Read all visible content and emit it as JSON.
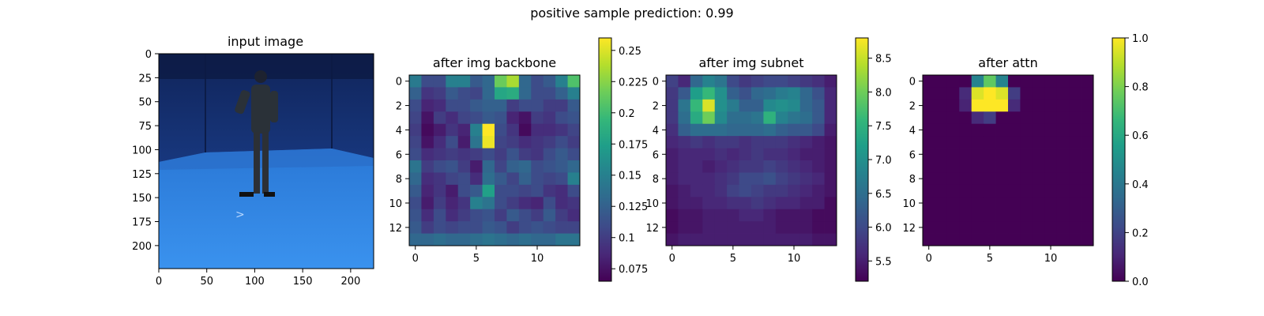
{
  "figure": {
    "suptitle": "positive sample      prediction: 0.99"
  },
  "colormap": [
    "#440154",
    "#482878",
    "#3e4a89",
    "#31688e",
    "#26828e",
    "#1f9e89",
    "#35b779",
    "#6dcd59",
    "#b4de2c",
    "#fde725"
  ],
  "chart_data": [
    {
      "type": "image",
      "title": "input image",
      "xlim": [
        0,
        224
      ],
      "ylim": [
        224,
        0
      ],
      "xticks": [
        0,
        50,
        100,
        150,
        200
      ],
      "yticks": [
        0,
        25,
        50,
        75,
        100,
        125,
        150,
        175,
        200
      ],
      "image": {
        "description_free": true,
        "wall_color": "#1f3f8f",
        "floor_color": "#2f86e6"
      }
    },
    {
      "type": "heatmap",
      "title": "after img backbone",
      "xticks": [
        0,
        5,
        10
      ],
      "yticks": [
        0,
        2,
        4,
        6,
        8,
        10,
        12
      ],
      "colorbar_ticks": [
        0.075,
        0.1,
        0.125,
        0.15,
        0.175,
        0.2,
        0.225,
        0.25
      ],
      "vmin": 0.065,
      "vmax": 0.26,
      "values": [
        [
          0.145,
          0.11,
          0.11,
          0.15,
          0.15,
          0.12,
          0.13,
          0.215,
          0.235,
          0.13,
          0.11,
          0.12,
          0.15,
          0.205
        ],
        [
          0.125,
          0.095,
          0.1,
          0.12,
          0.11,
          0.105,
          0.13,
          0.18,
          0.185,
          0.13,
          0.11,
          0.11,
          0.125,
          0.15
        ],
        [
          0.11,
          0.085,
          0.09,
          0.11,
          0.11,
          0.12,
          0.125,
          0.125,
          0.1,
          0.11,
          0.11,
          0.1,
          0.1,
          0.12
        ],
        [
          0.105,
          0.075,
          0.1,
          0.09,
          0.105,
          0.11,
          0.12,
          0.115,
          0.085,
          0.075,
          0.1,
          0.095,
          0.11,
          0.115
        ],
        [
          0.1,
          0.07,
          0.08,
          0.095,
          0.085,
          0.15,
          0.26,
          0.11,
          0.095,
          0.07,
          0.09,
          0.09,
          0.095,
          0.105
        ],
        [
          0.105,
          0.075,
          0.09,
          0.11,
          0.08,
          0.14,
          0.255,
          0.105,
          0.1,
          0.09,
          0.095,
          0.1,
          0.11,
          0.1
        ],
        [
          0.11,
          0.09,
          0.095,
          0.1,
          0.095,
          0.1,
          0.11,
          0.1,
          0.115,
          0.1,
          0.095,
          0.11,
          0.12,
          0.11
        ],
        [
          0.14,
          0.1,
          0.11,
          0.115,
          0.1,
          0.08,
          0.13,
          0.105,
          0.125,
          0.13,
          0.11,
          0.115,
          0.12,
          0.13
        ],
        [
          0.13,
          0.09,
          0.095,
          0.105,
          0.11,
          0.09,
          0.135,
          0.12,
          0.105,
          0.125,
          0.11,
          0.105,
          0.11,
          0.15
        ],
        [
          0.12,
          0.085,
          0.095,
          0.08,
          0.11,
          0.12,
          0.175,
          0.11,
          0.11,
          0.105,
          0.11,
          0.095,
          0.09,
          0.11
        ],
        [
          0.11,
          0.08,
          0.1,
          0.085,
          0.095,
          0.15,
          0.14,
          0.11,
          0.1,
          0.09,
          0.085,
          0.11,
          0.09,
          0.095
        ],
        [
          0.115,
          0.09,
          0.11,
          0.09,
          0.1,
          0.11,
          0.115,
          0.1,
          0.12,
          0.11,
          0.1,
          0.12,
          0.1,
          0.09
        ],
        [
          0.12,
          0.1,
          0.11,
          0.105,
          0.11,
          0.11,
          0.12,
          0.115,
          0.1,
          0.11,
          0.115,
          0.11,
          0.105,
          0.105
        ],
        [
          0.13,
          0.13,
          0.135,
          0.13,
          0.13,
          0.135,
          0.14,
          0.135,
          0.13,
          0.135,
          0.13,
          0.13,
          0.14,
          0.14
        ]
      ]
    },
    {
      "type": "heatmap",
      "title": "after img subnet",
      "xticks": [
        0,
        5,
        10
      ],
      "yticks": [
        0,
        2,
        4,
        6,
        8,
        10,
        12
      ],
      "colorbar_ticks": [
        5.5,
        6.0,
        6.5,
        7.0,
        7.5,
        8.0,
        8.5
      ],
      "vmin": 5.2,
      "vmax": 8.8,
      "values": [
        [
          5.9,
          5.6,
          6.4,
          6.8,
          6.6,
          6.0,
          5.8,
          5.9,
          6.0,
          6.0,
          5.9,
          5.8,
          5.7,
          5.5
        ],
        [
          5.8,
          6.2,
          7.2,
          7.6,
          7.0,
          6.3,
          6.1,
          6.4,
          6.5,
          6.7,
          6.8,
          6.4,
          6.1,
          5.6
        ],
        [
          5.8,
          6.6,
          7.6,
          8.6,
          7.0,
          6.7,
          6.3,
          6.3,
          6.9,
          7.0,
          6.9,
          6.4,
          6.2,
          5.6
        ],
        [
          5.8,
          6.5,
          7.4,
          8.0,
          6.9,
          6.5,
          6.5,
          6.6,
          7.5,
          6.8,
          6.6,
          6.5,
          6.2,
          5.6
        ],
        [
          5.7,
          6.3,
          6.5,
          6.5,
          6.5,
          6.4,
          6.4,
          6.4,
          6.5,
          6.3,
          6.2,
          6.2,
          6.0,
          5.5
        ],
        [
          5.6,
          5.7,
          5.8,
          5.7,
          5.8,
          5.8,
          5.7,
          5.8,
          5.8,
          5.8,
          5.7,
          5.6,
          5.5,
          5.4
        ],
        [
          5.5,
          5.6,
          5.6,
          5.6,
          5.7,
          5.6,
          5.7,
          5.8,
          5.7,
          5.7,
          5.6,
          5.5,
          5.5,
          5.4
        ],
        [
          5.5,
          5.6,
          5.6,
          5.5,
          5.6,
          5.7,
          5.8,
          5.8,
          5.9,
          5.8,
          5.7,
          5.6,
          5.5,
          5.4
        ],
        [
          5.5,
          5.6,
          5.6,
          5.6,
          5.7,
          5.8,
          6.0,
          6.0,
          6.1,
          5.9,
          5.8,
          5.7,
          5.6,
          5.4
        ],
        [
          5.4,
          5.5,
          5.6,
          5.6,
          5.7,
          5.9,
          6.0,
          5.9,
          5.8,
          5.8,
          5.7,
          5.6,
          5.5,
          5.4
        ],
        [
          5.4,
          5.5,
          5.5,
          5.6,
          5.6,
          5.7,
          5.7,
          5.8,
          5.7,
          5.6,
          5.6,
          5.5,
          5.5,
          5.3
        ],
        [
          5.3,
          5.4,
          5.4,
          5.5,
          5.5,
          5.5,
          5.6,
          5.6,
          5.5,
          5.4,
          5.4,
          5.4,
          5.3,
          5.3
        ],
        [
          5.3,
          5.4,
          5.4,
          5.5,
          5.5,
          5.5,
          5.5,
          5.5,
          5.5,
          5.4,
          5.4,
          5.4,
          5.3,
          5.3
        ],
        [
          5.4,
          5.5,
          5.5,
          5.5,
          5.5,
          5.5,
          5.5,
          5.5,
          5.5,
          5.5,
          5.5,
          5.5,
          5.4,
          5.4
        ]
      ]
    },
    {
      "type": "heatmap",
      "title": "after attn",
      "xticks": [
        0,
        5,
        10
      ],
      "yticks": [
        0,
        2,
        4,
        6,
        8,
        10,
        12
      ],
      "colorbar_ticks": [
        0.0,
        0.2,
        0.4,
        0.6,
        0.8,
        1.0
      ],
      "vmin": 0.0,
      "vmax": 1.0,
      "values": [
        [
          0,
          0,
          0,
          0,
          0.45,
          0.75,
          0.45,
          0,
          0,
          0,
          0,
          0,
          0,
          0
        ],
        [
          0,
          0,
          0,
          0.12,
          0.95,
          1.0,
          0.95,
          0.18,
          0,
          0,
          0,
          0,
          0,
          0
        ],
        [
          0,
          0,
          0,
          0.1,
          1.0,
          1.0,
          1.0,
          0.12,
          0,
          0,
          0,
          0,
          0,
          0
        ],
        [
          0,
          0,
          0,
          0,
          0.12,
          0.18,
          0,
          0,
          0,
          0,
          0,
          0,
          0,
          0
        ],
        [
          0,
          0,
          0,
          0,
          0,
          0,
          0,
          0,
          0,
          0,
          0,
          0,
          0,
          0
        ],
        [
          0,
          0,
          0,
          0,
          0,
          0,
          0,
          0,
          0,
          0,
          0,
          0,
          0,
          0
        ],
        [
          0,
          0,
          0,
          0,
          0,
          0,
          0,
          0,
          0,
          0,
          0,
          0,
          0,
          0
        ],
        [
          0,
          0,
          0,
          0,
          0,
          0,
          0,
          0,
          0,
          0,
          0,
          0,
          0,
          0
        ],
        [
          0,
          0,
          0,
          0,
          0,
          0,
          0,
          0,
          0,
          0,
          0,
          0,
          0,
          0
        ],
        [
          0,
          0,
          0,
          0,
          0,
          0,
          0,
          0,
          0,
          0,
          0,
          0,
          0,
          0
        ],
        [
          0,
          0,
          0,
          0,
          0,
          0,
          0,
          0,
          0,
          0,
          0,
          0,
          0,
          0
        ],
        [
          0,
          0,
          0,
          0,
          0,
          0,
          0,
          0,
          0,
          0,
          0,
          0,
          0,
          0
        ],
        [
          0,
          0,
          0,
          0,
          0,
          0,
          0,
          0,
          0,
          0,
          0,
          0,
          0,
          0
        ],
        [
          0,
          0,
          0,
          0,
          0,
          0,
          0,
          0,
          0,
          0,
          0,
          0,
          0,
          0
        ]
      ]
    }
  ]
}
